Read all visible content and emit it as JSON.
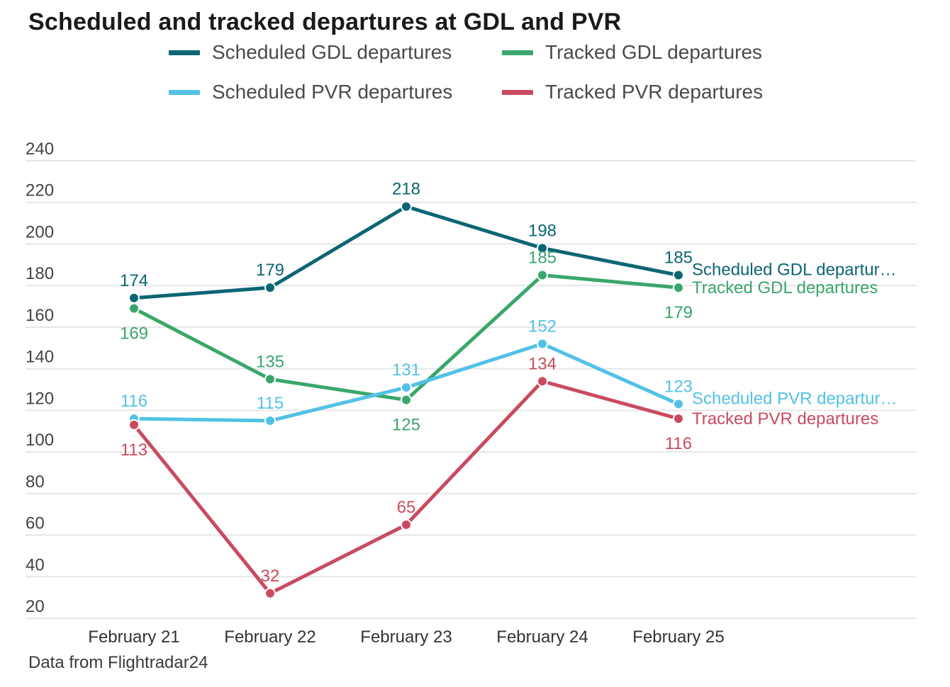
{
  "chart_data": {
    "type": "line",
    "title": "Scheduled and tracked departures at GDL and PVR",
    "xlabel": "",
    "ylabel": "",
    "ylim": [
      20,
      240
    ],
    "yticks": [
      240,
      220,
      200,
      180,
      160,
      140,
      120,
      100,
      80,
      60,
      40,
      20
    ],
    "grid": true,
    "legend_position": "top",
    "categories": [
      "February 21",
      "February 22",
      "February 23",
      "February 24",
      "February 25"
    ],
    "series": [
      {
        "name": "Scheduled GDL departures",
        "end_label": "Scheduled GDL departur…",
        "color": "#0b6574",
        "values": [
          174,
          179,
          218,
          198,
          185
        ],
        "label_pos": [
          "above",
          "above",
          "above",
          "above",
          "above"
        ]
      },
      {
        "name": "Tracked GDL departures",
        "end_label": "Tracked GDL departures",
        "color": "#3aa66b",
        "values": [
          169,
          135,
          125,
          185,
          179
        ],
        "label_pos": [
          "below",
          "above",
          "below",
          "above",
          "below"
        ]
      },
      {
        "name": "Scheduled PVR departures",
        "end_label": "Scheduled PVR departur…",
        "color": "#52c1e6",
        "values": [
          116,
          115,
          131,
          152,
          123
        ],
        "label_pos": [
          "above",
          "above",
          "above",
          "above",
          "above"
        ]
      },
      {
        "name": "Tracked PVR departures",
        "end_label": "Tracked PVR departures",
        "color": "#c94b5f",
        "values": [
          113,
          32,
          65,
          134,
          116
        ],
        "label_pos": [
          "below",
          "above",
          "above",
          "above",
          "below"
        ]
      }
    ],
    "source": "Data from Flightradar24"
  }
}
